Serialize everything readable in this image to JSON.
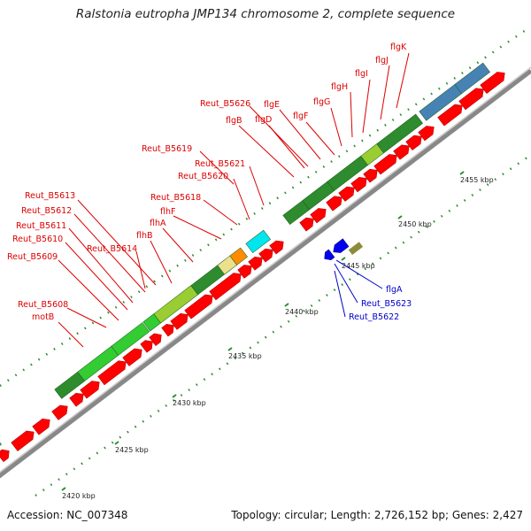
{
  "title": "Ralstonia eutropha JMP134 chromosome 2, complete sequence",
  "accession_label": "Accession: NC_007348",
  "summary": "Topology: circular; Length: 2,726,152 bp; Genes: 2,427",
  "colors": {
    "forward_gene": "#ff0000",
    "reverse_gene": "#0000ee",
    "track_dark_green": "#2e8b2e",
    "track_light_green": "#9acd32",
    "track_bright_green": "#33cc33",
    "track_steel_blue": "#4682b4",
    "track_cyan": "#00e5ee",
    "track_orange": "#ff8c00",
    "track_tan": "#ece08c",
    "backbone": "#999999",
    "tick_dot": "#2e8b2e"
  },
  "kbp_ticks": [
    "2420 kbp",
    "2425 kbp",
    "2430 kbp",
    "2435 kbp",
    "2440 kbp",
    "2445 kbp",
    "2450 kbp",
    "2455 kbp"
  ],
  "gene_labels_red": [
    "flgK",
    "flgJ",
    "flgI",
    "flgH",
    "flgG",
    "flgF",
    "Reut_B5626",
    "flgE",
    "flgD",
    "flgB",
    "Reut_B5619",
    "Reut_B5621",
    "Reut_B5620",
    "Reut_B5613",
    "Reut_B5618",
    "Reut_B5612",
    "flhF",
    "flhA",
    "Reut_B5611",
    "flhB",
    "Reut_B5610",
    "Reut_B5614",
    "Reut_B5609",
    "Reut_B5608",
    "motB"
  ],
  "gene_labels_blue": [
    "flgA",
    "Reut_B5623",
    "Reut_B5622"
  ]
}
